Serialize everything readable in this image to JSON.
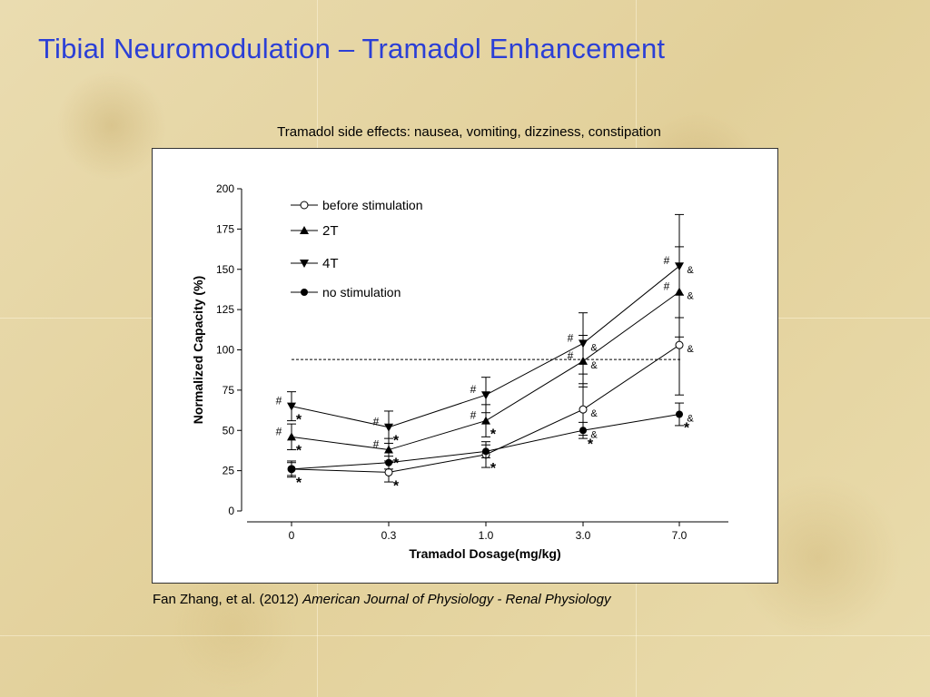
{
  "slide": {
    "title": "Tibial Neuromodulation – Tramadol Enhancement",
    "chart_heading": "Tramadol side effects: nausea, vomiting, dizziness, constipation",
    "citation_authors": "Fan Zhang, et al. (2012) ",
    "citation_journal": "American Journal of  Physiology - Renal  Physiology"
  },
  "chart_data": {
    "type": "line",
    "categories": [
      "0",
      "0.3",
      "1.0",
      "3.0",
      "7.0"
    ],
    "xlabel": "Tramadol Dosage(mg/kg)",
    "ylabel": "Normalized Capacity (%)",
    "ylim": [
      0,
      200
    ],
    "yticks": [
      0,
      25,
      50,
      75,
      100,
      125,
      150,
      175,
      200
    ],
    "reference_line": 94,
    "legend_position": "top-left",
    "series": [
      {
        "name": "before stimulation",
        "marker": "open-circle",
        "values": [
          26,
          24,
          35,
          63,
          103
        ],
        "err": [
          5,
          6,
          8,
          16,
          31
        ],
        "annotations": [
          "*",
          "*",
          "*",
          "&",
          "&"
        ]
      },
      {
        "name": "2T",
        "marker": "triangle-up",
        "values": [
          46,
          38,
          56,
          93,
          136
        ],
        "err": [
          8,
          7,
          10,
          16,
          28
        ],
        "annotations": [
          "#*",
          "#*",
          "#*",
          "#&",
          "#&"
        ]
      },
      {
        "name": "4T",
        "marker": "triangle-down",
        "values": [
          65,
          52,
          72,
          104,
          152
        ],
        "err": [
          9,
          10,
          11,
          19,
          32
        ],
        "annotations": [
          "#*",
          "#*",
          "#",
          "#&",
          "#&"
        ]
      },
      {
        "name": "no stimulation",
        "marker": "filled-circle",
        "values": [
          26,
          30,
          37,
          50,
          60
        ],
        "err": [
          4,
          4,
          4,
          5,
          7
        ],
        "annotations": [
          "",
          "",
          "",
          "*&",
          "*&"
        ]
      }
    ]
  }
}
